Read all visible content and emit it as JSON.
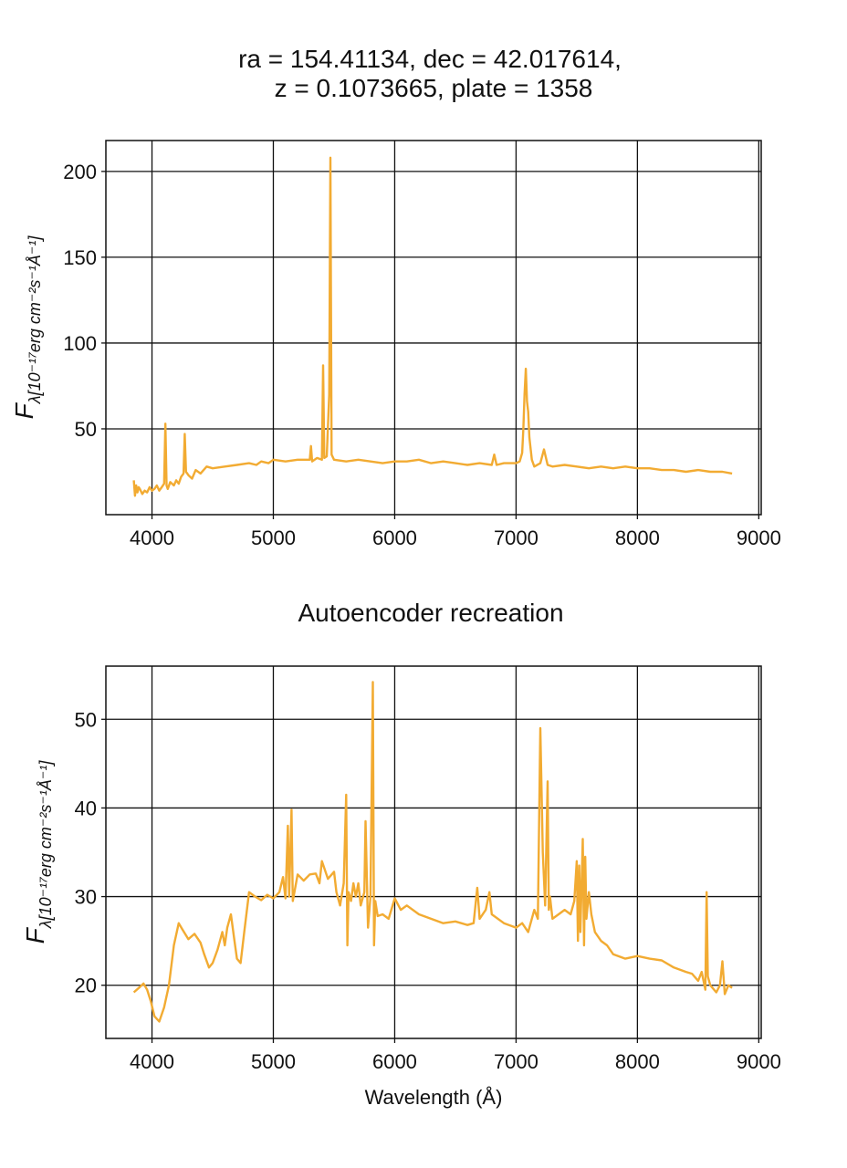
{
  "figure": {
    "title_line1": "ra = 154.41134, dec = 42.017614,",
    "title_line2": "z = 0.1073665, plate = 1358",
    "line_color": "#f2ab32"
  },
  "chart_data": [
    {
      "type": "line",
      "title": "",
      "xlabel": "",
      "ylabel_main": "F",
      "ylabel_sub": "λ[10⁻¹⁷erg cm⁻²s⁻¹Å⁻¹]",
      "xlim": [
        3620,
        9020
      ],
      "ylim": [
        0,
        218
      ],
      "xticks": [
        4000,
        5000,
        6000,
        7000,
        8000,
        9000
      ],
      "xtick_labels": [
        "4000",
        "5000",
        "6000",
        "7000",
        "8000",
        "9000"
      ],
      "yticks": [
        50,
        100,
        150,
        200
      ],
      "ytick_labels": [
        "50",
        "100",
        "150",
        "200"
      ],
      "grid": true,
      "series": [
        {
          "x": [
            3850,
            3860,
            3870,
            3880,
            3890,
            3900,
            3920,
            3940,
            3960,
            3980,
            4000,
            4020,
            4040,
            4060,
            4080,
            4100,
            4110,
            4120,
            4130,
            4150,
            4180,
            4200,
            4220,
            4240,
            4260,
            4270,
            4280,
            4300,
            4330,
            4360,
            4400,
            4450,
            4500,
            4600,
            4700,
            4800,
            4860,
            4900,
            4960,
            5000,
            5100,
            5200,
            5300,
            5310,
            5320,
            5360,
            5400,
            5410,
            5420,
            5440,
            5460,
            5470,
            5480,
            5500,
            5600,
            5700,
            5800,
            5900,
            6000,
            6100,
            6200,
            6300,
            6400,
            6500,
            6600,
            6700,
            6800,
            6820,
            6840,
            6900,
            7000,
            7030,
            7050,
            7060,
            7070,
            7080,
            7090,
            7100,
            7110,
            7130,
            7150,
            7200,
            7230,
            7260,
            7300,
            7400,
            7500,
            7600,
            7700,
            7800,
            7900,
            8000,
            8100,
            8200,
            8300,
            8400,
            8500,
            8600,
            8700,
            8780
          ],
          "y": [
            20,
            11,
            17,
            13,
            16,
            15,
            12,
            14,
            13,
            16,
            14,
            15,
            17,
            14,
            16,
            18,
            53,
            17,
            15,
            19,
            17,
            20,
            18,
            22,
            24,
            47,
            25,
            23,
            21,
            26,
            24,
            28,
            27,
            28,
            29,
            30,
            29,
            31,
            30,
            32,
            31,
            32,
            32,
            40,
            31,
            33,
            32,
            87,
            33,
            34,
            70,
            208,
            35,
            32,
            31,
            32,
            31,
            30,
            31,
            31,
            32,
            30,
            31,
            30,
            29,
            30,
            29,
            35,
            29,
            30,
            30,
            31,
            36,
            50,
            70,
            85,
            66,
            60,
            45,
            32,
            28,
            30,
            38,
            29,
            28,
            29,
            28,
            27,
            28,
            27,
            28,
            27,
            27,
            26,
            26,
            25,
            26,
            25,
            25,
            24
          ]
        }
      ]
    },
    {
      "type": "line",
      "title": "Autoencoder recreation",
      "xlabel": "Wavelength (Å)",
      "ylabel_main": "F",
      "ylabel_sub": "λ[10⁻¹⁷erg cm⁻²s⁻¹Å⁻¹]",
      "xlim": [
        3620,
        9020
      ],
      "ylim": [
        14,
        56
      ],
      "xticks": [
        4000,
        5000,
        6000,
        7000,
        8000,
        9000
      ],
      "xtick_labels": [
        "4000",
        "5000",
        "6000",
        "7000",
        "8000",
        "9000"
      ],
      "yticks": [
        20,
        30,
        40,
        50
      ],
      "ytick_labels": [
        "20",
        "30",
        "40",
        "50"
      ],
      "grid": true,
      "series": [
        {
          "x": [
            3850,
            3900,
            3930,
            3960,
            3990,
            4020,
            4060,
            4100,
            4140,
            4180,
            4220,
            4250,
            4300,
            4350,
            4400,
            4430,
            4470,
            4500,
            4540,
            4580,
            4600,
            4620,
            4650,
            4680,
            4700,
            4730,
            4760,
            4800,
            4850,
            4900,
            4950,
            5000,
            5050,
            5080,
            5100,
            5120,
            5130,
            5150,
            5160,
            5200,
            5250,
            5300,
            5350,
            5380,
            5400,
            5450,
            5500,
            5520,
            5550,
            5580,
            5600,
            5610,
            5620,
            5640,
            5660,
            5680,
            5700,
            5720,
            5750,
            5760,
            5780,
            5800,
            5820,
            5830,
            5840,
            5860,
            5900,
            5950,
            6000,
            6050,
            6100,
            6200,
            6300,
            6400,
            6500,
            6600,
            6650,
            6680,
            6700,
            6750,
            6780,
            6800,
            6900,
            7000,
            7050,
            7100,
            7150,
            7180,
            7200,
            7220,
            7240,
            7260,
            7270,
            7280,
            7300,
            7350,
            7400,
            7450,
            7480,
            7500,
            7510,
            7520,
            7530,
            7550,
            7560,
            7570,
            7580,
            7600,
            7620,
            7650,
            7700,
            7750,
            7800,
            7900,
            8000,
            8100,
            8200,
            8300,
            8400,
            8450,
            8500,
            8530,
            8560,
            8570,
            8580,
            8600,
            8650,
            8680,
            8700,
            8720,
            8750,
            8780
          ],
          "y": [
            19.2,
            19.8,
            20.2,
            19.5,
            18.2,
            16.5,
            15.9,
            17.5,
            20.0,
            24.5,
            27.0,
            26.3,
            25.2,
            25.8,
            24.8,
            23.5,
            22.0,
            22.5,
            24.0,
            26.0,
            24.5,
            26.5,
            28.0,
            25.0,
            23.0,
            22.5,
            26.0,
            30.5,
            30.0,
            29.6,
            30.2,
            29.8,
            30.5,
            32.2,
            29.8,
            38.0,
            30.0,
            39.8,
            29.5,
            32.5,
            31.8,
            32.5,
            32.6,
            31.5,
            34.0,
            32.0,
            32.8,
            30.5,
            29.0,
            31.5,
            41.5,
            24.5,
            30.5,
            29.5,
            31.5,
            30.0,
            31.5,
            29.0,
            30.5,
            38.5,
            26.5,
            30.0,
            54.2,
            24.5,
            29.5,
            27.8,
            28.0,
            27.5,
            29.8,
            28.5,
            29.0,
            28.0,
            27.5,
            27.0,
            27.2,
            26.8,
            27.0,
            31.0,
            27.5,
            28.5,
            30.5,
            28.0,
            27.0,
            26.5,
            27.0,
            26.0,
            28.5,
            27.5,
            49.0,
            35.0,
            29.0,
            43.0,
            28.5,
            30.0,
            27.5,
            28.0,
            28.5,
            28.0,
            29.5,
            34.0,
            25.0,
            33.5,
            26.0,
            36.5,
            24.5,
            34.5,
            27.5,
            30.5,
            28.0,
            26.0,
            25.0,
            24.5,
            23.5,
            23.0,
            23.3,
            23.0,
            22.8,
            22.0,
            21.5,
            21.3,
            20.5,
            21.5,
            19.5,
            30.5,
            21.0,
            20.0,
            19.2,
            20.0,
            22.7,
            19.0,
            20.0,
            19.7
          ]
        }
      ]
    }
  ]
}
